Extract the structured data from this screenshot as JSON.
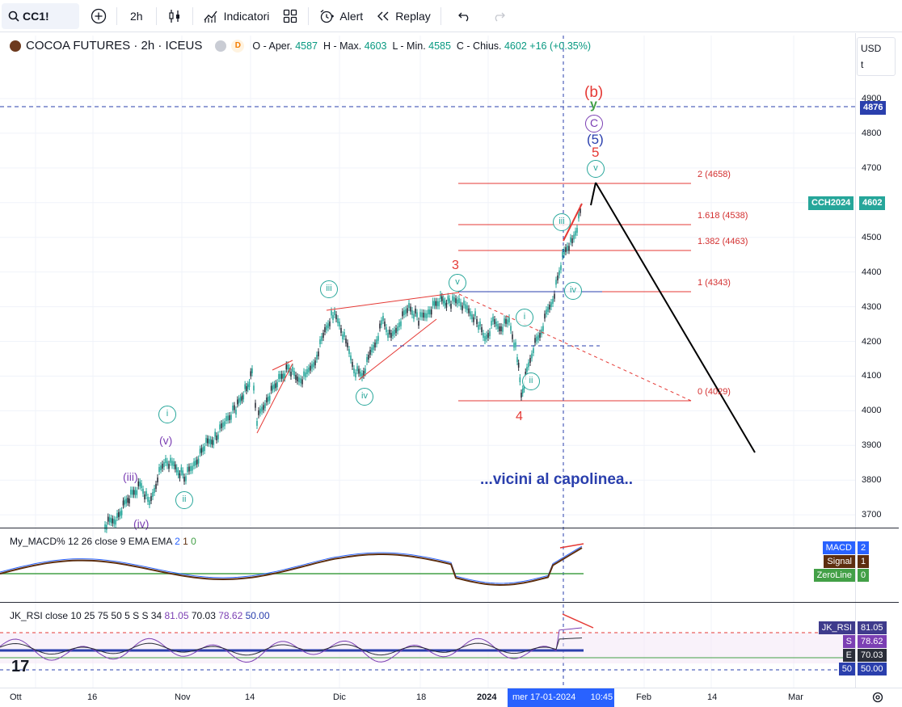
{
  "toolbar": {
    "symbol": "CC1!",
    "interval": "2h",
    "indicators_label": "Indicatori",
    "alert_label": "Alert",
    "replay_label": "Replay"
  },
  "legend": {
    "title": "COCOA FUTURES · 2h · ICEUS",
    "badge": "D",
    "open_label": "O - Aper.",
    "open": "4587",
    "high_label": "H - Max.",
    "high": "4603",
    "low_label": "L - Min.",
    "low": "4585",
    "close_label": "C - Chius.",
    "close": "4602",
    "change": "+16 (+0.35%)"
  },
  "price_scale": {
    "currency": "USD",
    "unit": "t",
    "labels": [
      "4900",
      "4800",
      "4700",
      "4600",
      "4500",
      "4400",
      "4300",
      "4200",
      "4100",
      "4000",
      "3900",
      "3800",
      "3700"
    ],
    "level_tag": "4876",
    "symbol_tag": "CCH2024",
    "last_price": "4602"
  },
  "fib_levels": [
    {
      "label": "2 (4658)"
    },
    {
      "label": "1.618 (4538)"
    },
    {
      "label": "1.382 (4463)"
    },
    {
      "label": "1 (4343)"
    },
    {
      "label": "0 (4029)"
    }
  ],
  "wave_labels": {
    "b": "(b)",
    "y": "y",
    "C": "C",
    "five_paren": "(5)",
    "five": "5",
    "three": "3",
    "four": "4",
    "v_top": "v",
    "v_mid": "v",
    "iii_top": "iii",
    "iv_right": "iv",
    "i_right": "i",
    "ii_right": "ii",
    "iii_left": "iii",
    "iv_left": "iv",
    "i_left": "i",
    "ii_left": "ii",
    "v_paren": "(v)",
    "iii_paren": "(iii)",
    "iv_paren": "(iv)"
  },
  "note": "...vicini al capolinea..",
  "macd": {
    "legend_name": "My_MACD%",
    "legend_params": "12 26 close 9 EMA EMA",
    "v1": "2",
    "v2": "1",
    "v3": "0",
    "tags": [
      {
        "name": "MACD",
        "value": "2",
        "color": "#2962ff"
      },
      {
        "name": "Signal",
        "value": "1",
        "color": "#5d2e0f"
      },
      {
        "name": "ZeroLine",
        "value": "0",
        "color": "#43a047"
      }
    ]
  },
  "rsi": {
    "legend_name": "JK_RSI",
    "legend_params": "close 10 25 75 50 5 S S 34",
    "v1": "81.05",
    "v2": "70.03",
    "v3": "78.62",
    "v4": "50.00",
    "tags": [
      {
        "name": "JK_RSI",
        "value": "81.05"
      },
      {
        "name": "S",
        "value": "78.62"
      },
      {
        "name": "E",
        "value": "70.03"
      },
      {
        "name": "50",
        "value": "50.00"
      }
    ]
  },
  "time_scale": {
    "labels": [
      "Ott",
      "16",
      "Nov",
      "14",
      "Dic",
      "18",
      "2024",
      "Feb",
      "14",
      "Mar"
    ],
    "cursor_date": "mer 17-01-2024",
    "cursor_time": "10:45"
  }
}
